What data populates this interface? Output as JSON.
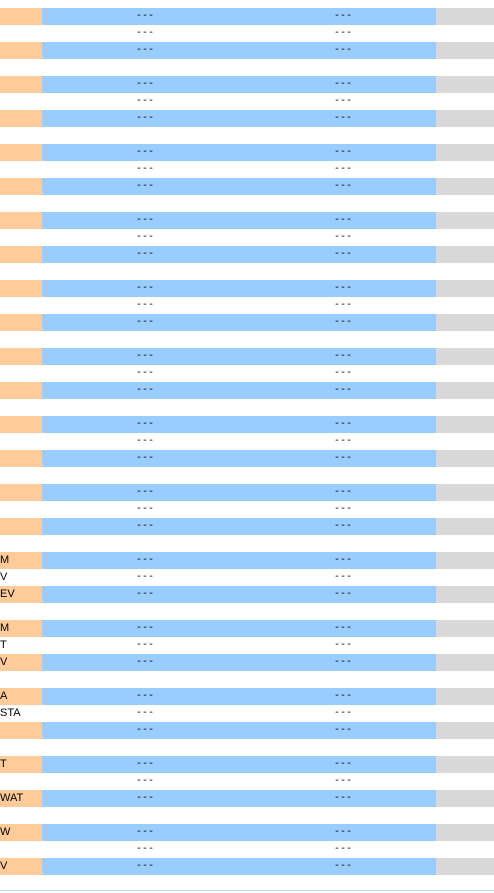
{
  "colors": {
    "label_highlight": "#ffcc99",
    "value_highlight": "#99ccff",
    "end_highlight": "#d8d8d8",
    "plain": "#ffffff"
  },
  "rows": [
    {
      "label": "",
      "v1": "---",
      "v2": "---",
      "hl": true
    },
    {
      "label": "",
      "v1": "---",
      "v2": "---",
      "hl": false
    },
    {
      "label": "",
      "v1": "---",
      "v2": "---",
      "hl": true
    },
    {
      "label": "",
      "v1": "",
      "v2": "",
      "hl": false
    },
    {
      "label": "",
      "v1": "---",
      "v2": "---",
      "hl": true
    },
    {
      "label": "",
      "v1": "---",
      "v2": "---",
      "hl": false
    },
    {
      "label": "",
      "v1": "---",
      "v2": "---",
      "hl": true
    },
    {
      "label": "",
      "v1": "",
      "v2": "",
      "hl": false
    },
    {
      "label": "",
      "v1": "---",
      "v2": "---",
      "hl": true
    },
    {
      "label": "",
      "v1": "---",
      "v2": "---",
      "hl": false
    },
    {
      "label": "",
      "v1": "---",
      "v2": "---",
      "hl": true
    },
    {
      "label": "",
      "v1": "",
      "v2": "",
      "hl": false
    },
    {
      "label": "",
      "v1": "---",
      "v2": "---",
      "hl": true
    },
    {
      "label": "",
      "v1": "---",
      "v2": "---",
      "hl": false
    },
    {
      "label": "",
      "v1": "---",
      "v2": "---",
      "hl": true
    },
    {
      "label": "",
      "v1": "",
      "v2": "",
      "hl": false
    },
    {
      "label": "",
      "v1": "---",
      "v2": "---",
      "hl": true
    },
    {
      "label": "",
      "v1": "---",
      "v2": "---",
      "hl": false
    },
    {
      "label": "",
      "v1": "---",
      "v2": "---",
      "hl": true
    },
    {
      "label": "",
      "v1": "",
      "v2": "",
      "hl": false
    },
    {
      "label": "",
      "v1": "---",
      "v2": "---",
      "hl": true
    },
    {
      "label": "",
      "v1": "---",
      "v2": "---",
      "hl": false
    },
    {
      "label": "",
      "v1": "---",
      "v2": "---",
      "hl": true
    },
    {
      "label": "",
      "v1": "",
      "v2": "",
      "hl": false
    },
    {
      "label": "",
      "v1": "---",
      "v2": "---",
      "hl": true
    },
    {
      "label": "",
      "v1": "---",
      "v2": "---",
      "hl": false
    },
    {
      "label": "",
      "v1": "---",
      "v2": "---",
      "hl": true
    },
    {
      "label": "",
      "v1": "",
      "v2": "",
      "hl": false
    },
    {
      "label": "",
      "v1": "---",
      "v2": "---",
      "hl": true
    },
    {
      "label": "",
      "v1": "---",
      "v2": "---",
      "hl": false
    },
    {
      "label": "",
      "v1": "---",
      "v2": "---",
      "hl": true
    },
    {
      "label": "",
      "v1": "",
      "v2": "",
      "hl": false
    },
    {
      "label": "M",
      "v1": "---",
      "v2": "---",
      "hl": true
    },
    {
      "label": "V",
      "v1": "---",
      "v2": "---",
      "hl": false
    },
    {
      "label": "EV",
      "v1": "---",
      "v2": "---",
      "hl": true
    },
    {
      "label": "",
      "v1": "",
      "v2": "",
      "hl": false
    },
    {
      "label": "M",
      "v1": "---",
      "v2": "---",
      "hl": true
    },
    {
      "label": "T",
      "v1": "---",
      "v2": "---",
      "hl": false
    },
    {
      "label": "V",
      "v1": "---",
      "v2": "---",
      "hl": true
    },
    {
      "label": "",
      "v1": "",
      "v2": "",
      "hl": false
    },
    {
      "label": "A",
      "v1": "---",
      "v2": "---",
      "hl": true
    },
    {
      "label": "STA",
      "v1": "---",
      "v2": "---",
      "hl": false
    },
    {
      "label": "",
      "v1": "---",
      "v2": "---",
      "hl": true
    },
    {
      "label": "",
      "v1": "",
      "v2": "",
      "hl": false
    },
    {
      "label": "T",
      "v1": "---",
      "v2": "---",
      "hl": true
    },
    {
      "label": "",
      "v1": "---",
      "v2": "---",
      "hl": false
    },
    {
      "label": "WAT",
      "v1": "---",
      "v2": "---",
      "hl": true
    },
    {
      "label": "",
      "v1": "",
      "v2": "",
      "hl": false
    },
    {
      "label": "W",
      "v1": "---",
      "v2": "---",
      "hl": true
    },
    {
      "label": "",
      "v1": "---",
      "v2": "---",
      "hl": false
    },
    {
      "label": "V",
      "v1": "---",
      "v2": "---",
      "hl": true
    }
  ]
}
